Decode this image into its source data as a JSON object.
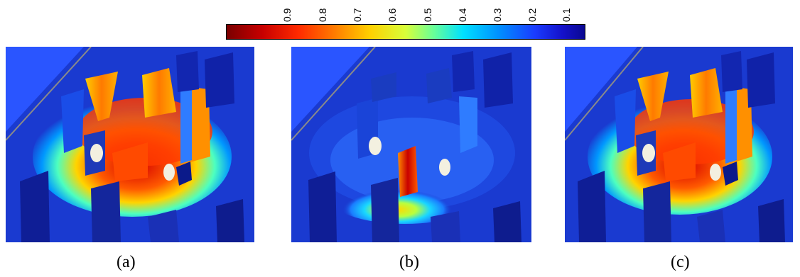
{
  "colorbar": {
    "tick_labels": [
      "0.9",
      "0.8",
      "0.7",
      "0.6",
      "0.5",
      "0.4",
      "0.3",
      "0.2",
      "0.1"
    ],
    "colors": [
      "#7a0000",
      "#ff2a00",
      "#ffd000",
      "#66ff9a",
      "#00e0ff",
      "#1a3cff",
      "#0a0890"
    ]
  },
  "panels": [
    {
      "caption": "(a)",
      "hotspot": "ring"
    },
    {
      "caption": "(b)",
      "hotspot": "center"
    },
    {
      "caption": "(c)",
      "hotspot": "ring"
    }
  ],
  "palette": {
    "ground_dark": "#10209a",
    "ground_mid": "#1a3ad0",
    "ground_light": "#2a55ff"
  }
}
